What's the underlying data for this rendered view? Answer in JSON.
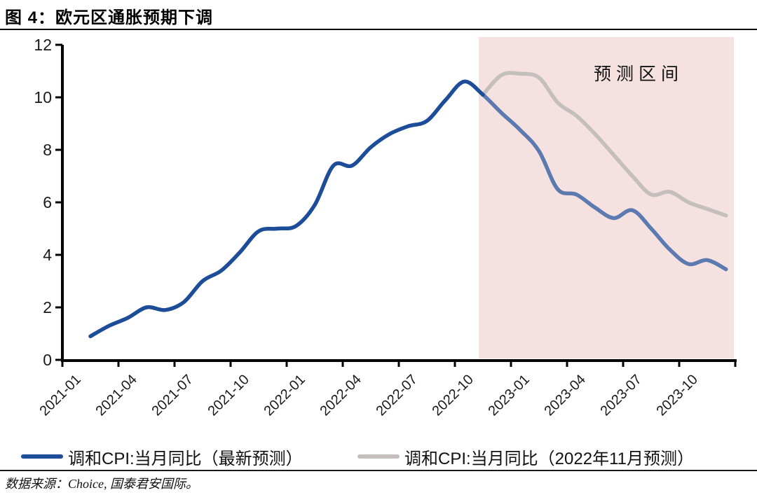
{
  "figure": {
    "title": "图 4：欧元区通胀预期下调",
    "source_note": "数据来源：Choice, 国泰君安国际。"
  },
  "chart_data": {
    "type": "line",
    "title": "欧元区通胀预期下调",
    "x": [
      "2021-01",
      "2021-02",
      "2021-03",
      "2021-04",
      "2021-05",
      "2021-06",
      "2021-07",
      "2021-08",
      "2021-09",
      "2021-10",
      "2021-11",
      "2021-12",
      "2022-01",
      "2022-02",
      "2022-03",
      "2022-04",
      "2022-05",
      "2022-06",
      "2022-07",
      "2022-08",
      "2022-09",
      "2022-10",
      "2022-11",
      "2022-12",
      "2023-01",
      "2023-02",
      "2023-03",
      "2023-04",
      "2023-05",
      "2023-06",
      "2023-07",
      "2023-08",
      "2023-09",
      "2023-10",
      "2023-11",
      "2023-12"
    ],
    "x_tick_labels": [
      "2021-01",
      "2021-04",
      "2021-07",
      "2021-10",
      "2022-01",
      "2022-04",
      "2022-07",
      "2022-10",
      "2023-01",
      "2023-04",
      "2023-07",
      "2023-10"
    ],
    "y_ticks": [
      0,
      2,
      4,
      6,
      8,
      10,
      12
    ],
    "ylim": [
      0,
      12
    ],
    "grid": "off",
    "legend_position": "bottom",
    "series": [
      {
        "name": "调和CPI:当月同比（最新预测）",
        "color_actual": "#1d4d99",
        "color_forecast": "#5c79b0",
        "values": [
          null,
          0.9,
          1.3,
          1.6,
          2.0,
          1.9,
          2.2,
          3.0,
          3.4,
          4.1,
          4.9,
          5.0,
          5.1,
          5.9,
          7.4,
          7.4,
          8.1,
          8.6,
          8.9,
          9.1,
          9.9,
          10.6,
          10.1,
          9.4,
          8.75,
          7.95,
          6.5,
          6.3,
          5.8,
          5.4,
          5.7,
          5.0,
          4.2,
          3.65,
          3.8,
          3.45
        ]
      },
      {
        "name": "调和CPI:当月同比（2022年11月预测）",
        "color": "#c4bfbd",
        "values": [
          null,
          null,
          null,
          null,
          null,
          null,
          null,
          null,
          null,
          null,
          null,
          null,
          null,
          null,
          null,
          null,
          null,
          null,
          null,
          null,
          null,
          null,
          10.1,
          10.85,
          10.9,
          10.75,
          9.8,
          9.3,
          8.6,
          7.8,
          7.0,
          6.3,
          6.4,
          6.0,
          5.75,
          5.5
        ]
      }
    ],
    "forecast_region": {
      "label": "预测区间",
      "start": "2022-11",
      "fill": "#f4e1e0"
    }
  }
}
